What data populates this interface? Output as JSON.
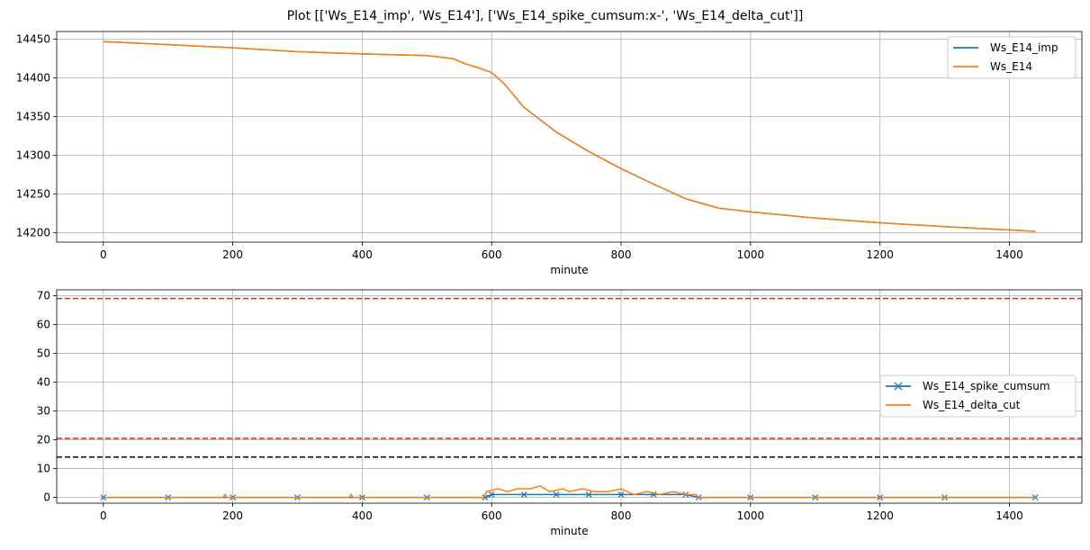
{
  "figure": {
    "title": "Plot [['Ws_E14_imp', 'Ws_E14'], ['Ws_E14_spike_cumsum:x-', 'Ws_E14_delta_cut']]"
  },
  "colors": {
    "blue": "#1f77b4",
    "orange": "#ff7f0e",
    "red": "#d62728",
    "black": "#000000",
    "grid": "#b0b0b0"
  },
  "chart_data": [
    {
      "type": "line",
      "xlabel": "minute",
      "ylabel": "",
      "xlim": [
        -72,
        1512
      ],
      "ylim": [
        14188,
        14460
      ],
      "xticks": [
        0,
        200,
        400,
        600,
        800,
        1000,
        1200,
        1400
      ],
      "yticks": [
        14200,
        14250,
        14300,
        14350,
        14400,
        14450
      ],
      "grid": true,
      "legend": "top-right",
      "series": [
        {
          "name": "Ws_E14_imp",
          "color": "#1f77b4",
          "x": [
            0,
            100,
            200,
            300,
            400,
            500,
            540,
            560,
            580,
            600,
            620,
            650,
            700,
            750,
            800,
            850,
            900,
            950,
            1000,
            1100,
            1200,
            1300,
            1440
          ],
          "y": [
            14447,
            14443,
            14439,
            14434,
            14431,
            14429,
            14425,
            14418,
            14413,
            14407,
            14392,
            14362,
            14330,
            14305,
            14283,
            14263,
            14244,
            14232,
            14227,
            14219,
            14213,
            14208,
            14202
          ]
        },
        {
          "name": "Ws_E14",
          "color": "#ff7f0e",
          "x": [
            0,
            100,
            200,
            300,
            400,
            500,
            540,
            560,
            580,
            600,
            620,
            650,
            700,
            750,
            800,
            850,
            900,
            950,
            1000,
            1100,
            1200,
            1300,
            1440
          ],
          "y": [
            14447,
            14443,
            14439,
            14434,
            14431,
            14429,
            14425,
            14418,
            14413,
            14407,
            14392,
            14362,
            14330,
            14305,
            14283,
            14263,
            14244,
            14232,
            14227,
            14219,
            14213,
            14208,
            14202
          ]
        }
      ]
    },
    {
      "type": "line",
      "xlabel": "minute",
      "ylabel": "",
      "xlim": [
        -72,
        1512
      ],
      "ylim": [
        -2,
        72
      ],
      "xticks": [
        0,
        200,
        400,
        600,
        800,
        1000,
        1200,
        1400
      ],
      "yticks": [
        0,
        10,
        20,
        30,
        40,
        50,
        60,
        70
      ],
      "grid": true,
      "legend": "center-right",
      "hlines": [
        {
          "y": 69,
          "color": "#d62728",
          "style": "dashed"
        },
        {
          "y": 20.5,
          "color": "#d62728",
          "style": "dashed"
        },
        {
          "y": 14,
          "color": "#000000",
          "style": "dashed"
        }
      ],
      "series": [
        {
          "name": "Ws_E14_spike_cumsum",
          "color": "#1f77b4",
          "marker": "x",
          "x": [
            0,
            100,
            200,
            300,
            400,
            500,
            590,
            600,
            650,
            700,
            750,
            800,
            850,
            900,
            920,
            1000,
            1100,
            1200,
            1300,
            1440
          ],
          "y": [
            0,
            0,
            0,
            0,
            0,
            0,
            0,
            1,
            1,
            1,
            1,
            1,
            1,
            1,
            0,
            0,
            0,
            0,
            0,
            0
          ]
        },
        {
          "name": "Ws_E14_delta_cut",
          "color": "#ff7f0e",
          "x": [
            0,
            185,
            188,
            191,
            380,
            383,
            386,
            588,
            592,
            610,
            625,
            640,
            660,
            675,
            690,
            710,
            720,
            740,
            760,
            780,
            800,
            820,
            840,
            860,
            880,
            900,
            915,
            920,
            1100,
            1300,
            1440
          ],
          "y": [
            0,
            0,
            1,
            0,
            0,
            1,
            0,
            0,
            2,
            3,
            2,
            3,
            3,
            4,
            2,
            3,
            2,
            3,
            2,
            2,
            3,
            1,
            2,
            1,
            2,
            1,
            1,
            0,
            0,
            0,
            0
          ]
        }
      ]
    }
  ]
}
